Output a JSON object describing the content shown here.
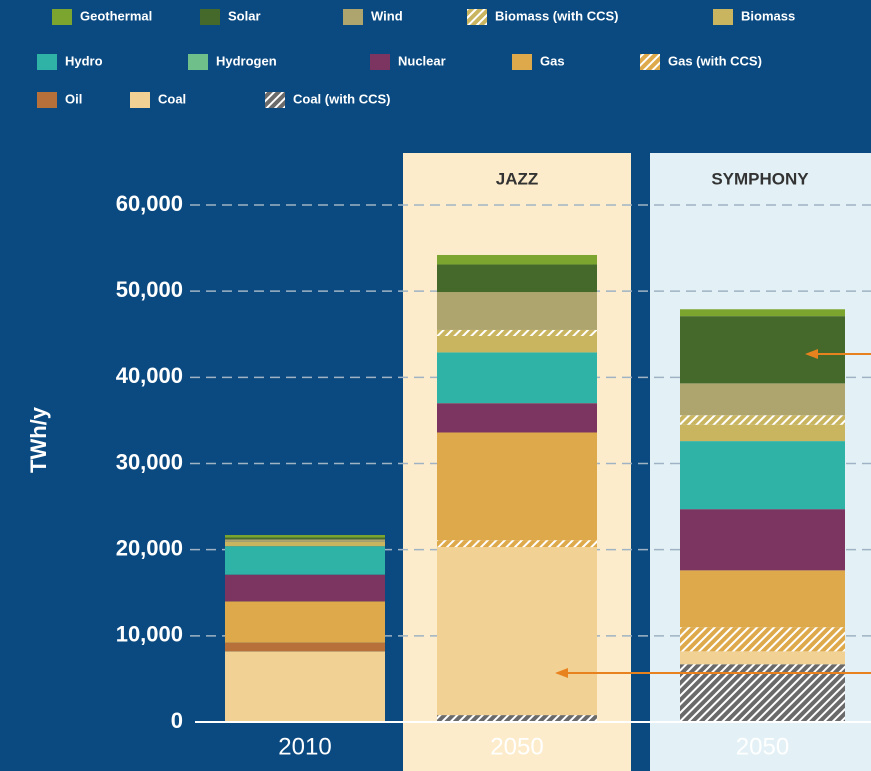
{
  "chart_data": {
    "type": "stacked_bar",
    "y_label": "TWh/y",
    "categories": [
      "2010",
      "2050",
      "2050"
    ],
    "scenarios": [
      null,
      "JAZZ",
      "SYMPHONY"
    ],
    "ylim": [
      0,
      60000
    ],
    "yticks": [
      0,
      {
        "value": 10000,
        "label": "10,000"
      },
      {
        "value": 20000,
        "label": "20,000"
      },
      {
        "value": 30000,
        "label": "30,000"
      },
      {
        "value": 40000,
        "label": "40,000"
      },
      {
        "value": 50000,
        "label": "50,000"
      },
      {
        "value": 60000,
        "label": "60,000"
      }
    ],
    "grid": true,
    "series": [
      {
        "name": "Geothermal",
        "color": "#7ba52e",
        "values": [
          300,
          1100,
          800
        ]
      },
      {
        "name": "Solar",
        "color": "#44692a",
        "values": [
          200,
          3200,
          7800
        ]
      },
      {
        "name": "Wind",
        "color": "#aea46e",
        "values": [
          300,
          4400,
          3700
        ]
      },
      {
        "name": "Biomass (with CCS)",
        "color": "#c9b560",
        "hatch": true,
        "values": [
          0,
          700,
          1100
        ]
      },
      {
        "name": "Biomass",
        "color": "#c9b560",
        "values": [
          500,
          1900,
          1900
        ]
      },
      {
        "name": "Hydro",
        "color": "#2fb3a6",
        "values": [
          3300,
          5900,
          7900
        ]
      },
      {
        "name": "Hydrogen",
        "color": "#6fbf8a",
        "values": [
          0,
          0,
          0
        ]
      },
      {
        "name": "Nuclear",
        "color": "#7b3560",
        "values": [
          3100,
          3400,
          7100
        ]
      },
      {
        "name": "Gas",
        "color": "#dea94a",
        "values": [
          4800,
          12500,
          6600
        ]
      },
      {
        "name": "Gas (with CCS)",
        "color": "#dea94a",
        "hatch": true,
        "values": [
          0,
          800,
          2800
        ]
      },
      {
        "name": "Oil",
        "color": "#b8703a",
        "values": [
          1000,
          0,
          0
        ]
      },
      {
        "name": "Coal",
        "color": "#f2d294",
        "values": [
          8200,
          19500,
          1500
        ]
      },
      {
        "name": "Coal (with CCS)",
        "color": "#6a6a6a",
        "hatch": true,
        "values": [
          0,
          800,
          6700
        ]
      }
    ]
  }
}
